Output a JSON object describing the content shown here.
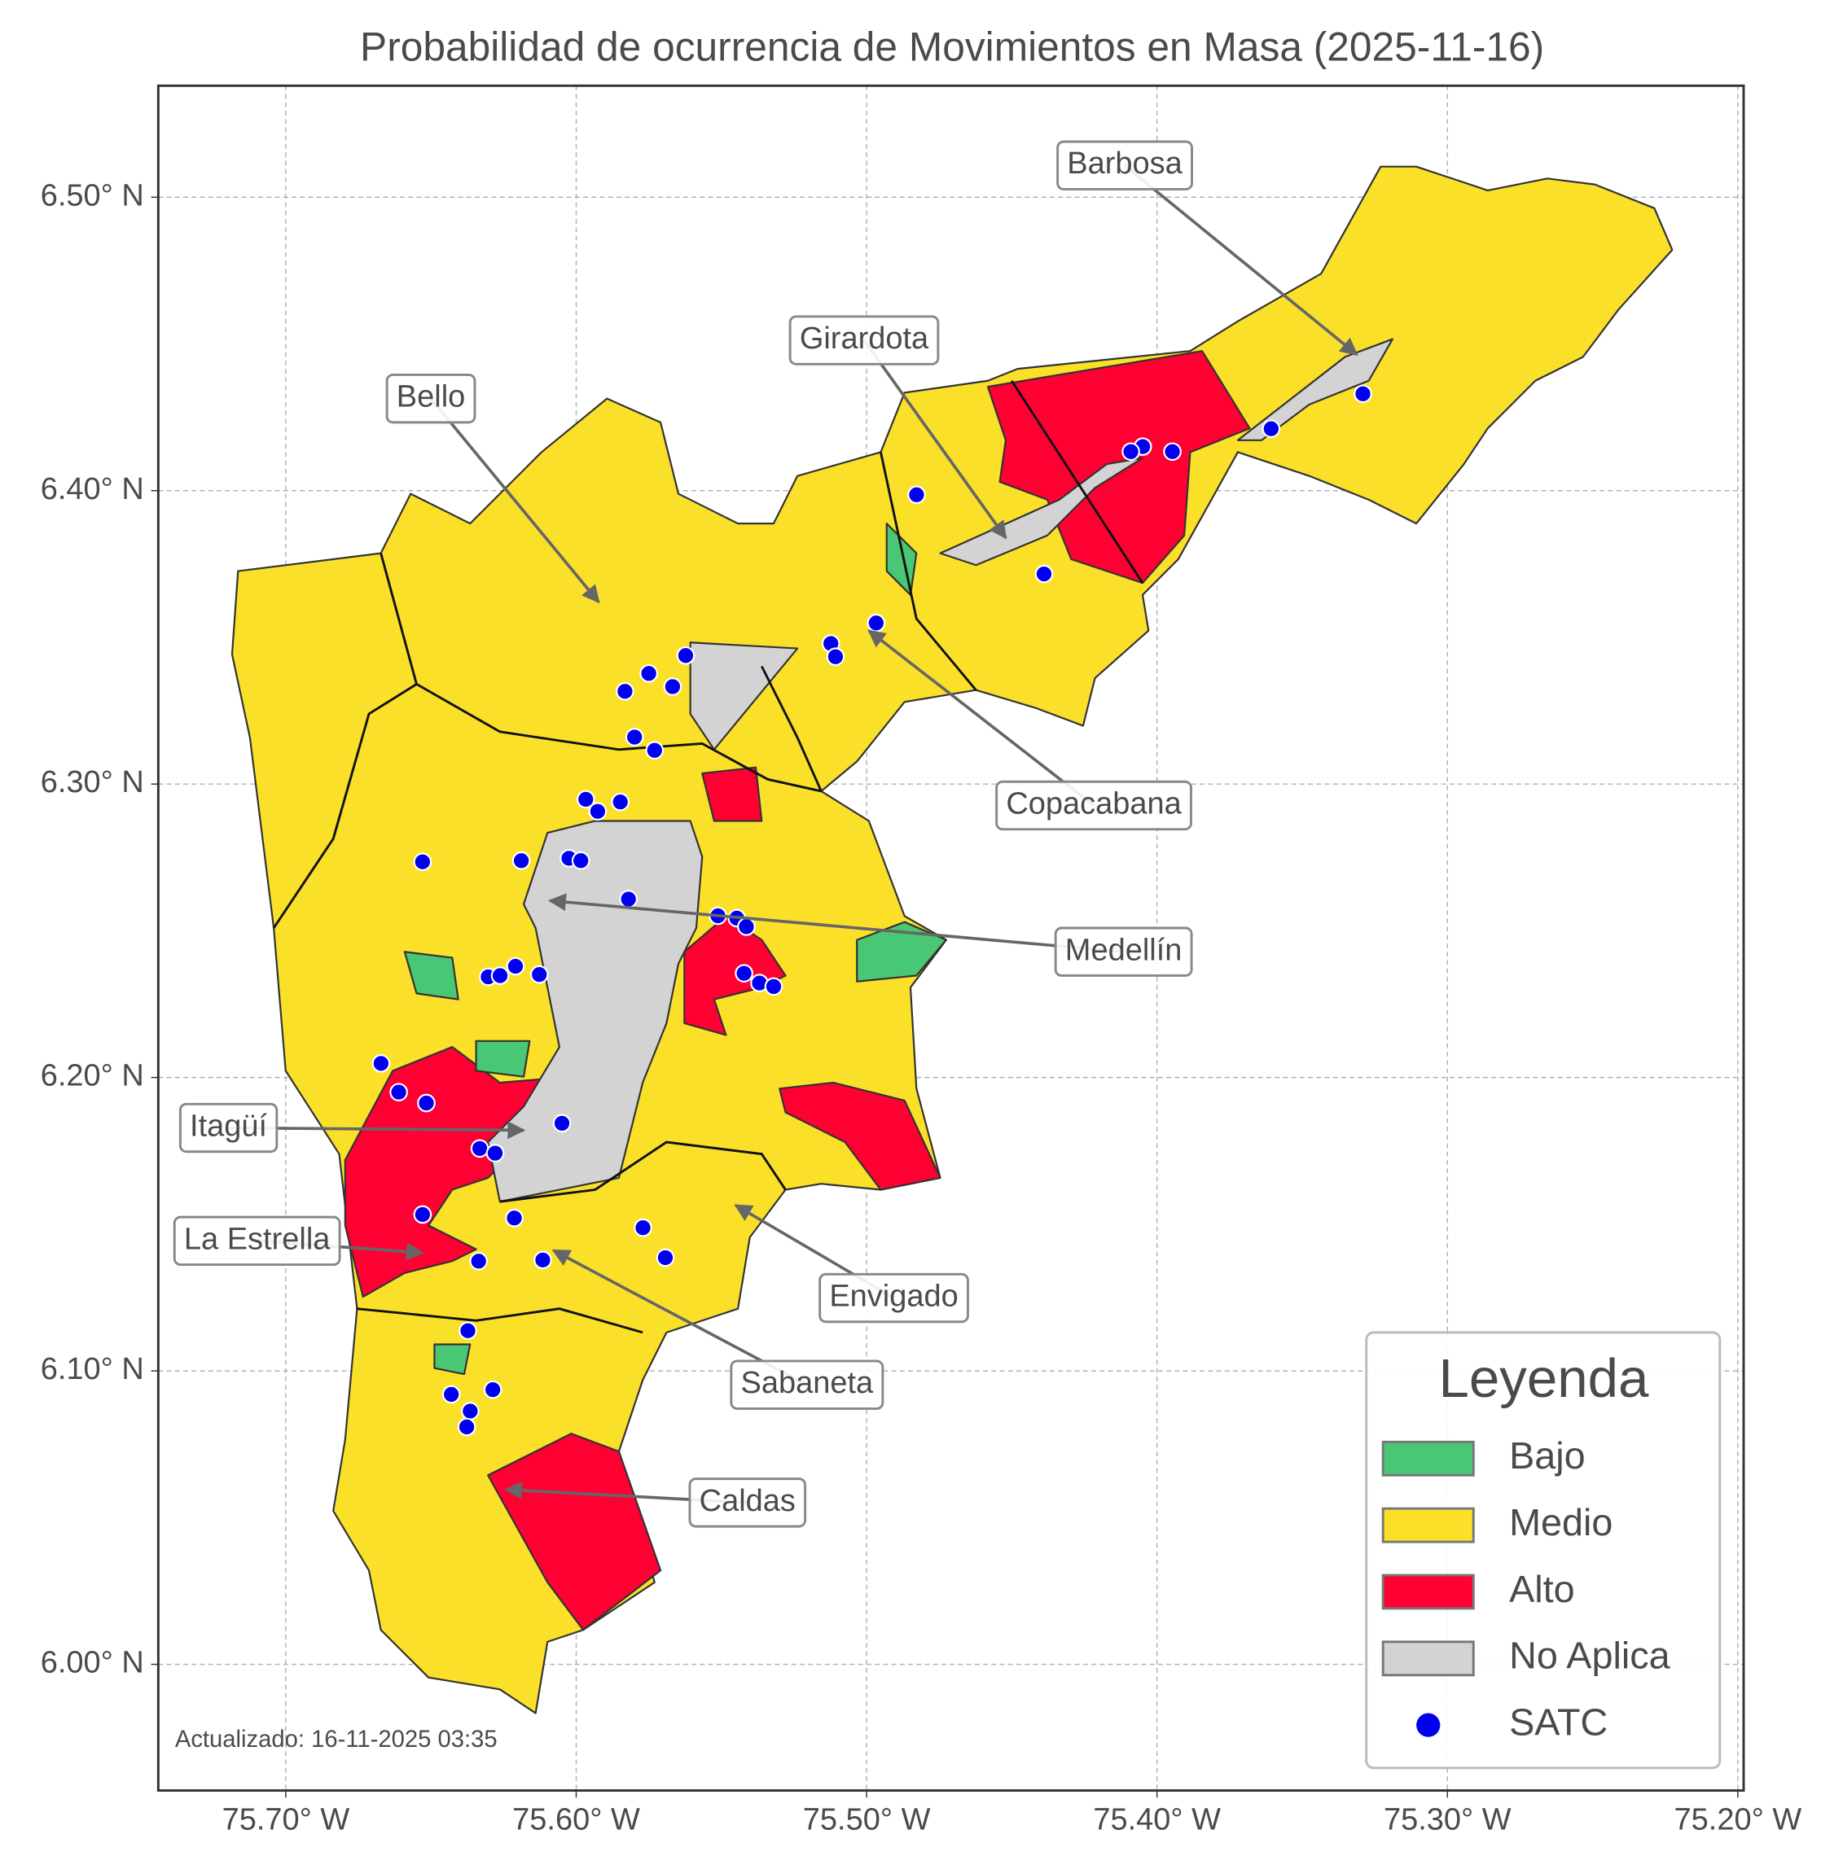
{
  "map": {
    "title": "Probabilidad de ocurrencia de Movimientos en Masa (2025-11-16)",
    "xlim": [
      -75.7439,
      -75.198
    ],
    "ylim": [
      5.957,
      6.538
    ],
    "xticks": [
      {
        "value": -75.7,
        "label": "75.70° W"
      },
      {
        "value": -75.6,
        "label": "75.60° W"
      },
      {
        "value": -75.5,
        "label": "75.50° W"
      },
      {
        "value": -75.4,
        "label": "75.40° W"
      },
      {
        "value": -75.3,
        "label": "75.30° W"
      },
      {
        "value": -75.2,
        "label": "75.20° W"
      }
    ],
    "yticks": [
      {
        "value": 6.0,
        "label": "6.00° N"
      },
      {
        "value": 6.1,
        "label": "6.10° N"
      },
      {
        "value": 6.2,
        "label": "6.20° N"
      },
      {
        "value": 6.3,
        "label": "6.30° N"
      },
      {
        "value": 6.4,
        "label": "6.40° N"
      },
      {
        "value": 6.5,
        "label": "6.50° N"
      }
    ],
    "grid": true,
    "annotations": [
      "Barbosa",
      "Girardota",
      "Bello",
      "Copacabana",
      "Medellín",
      "Itagüí",
      "La Estrella",
      "Envigado",
      "Sabaneta",
      "Caldas"
    ],
    "legend": {
      "title": "Leyenda",
      "position": "lower right",
      "items": [
        {
          "name": "Bajo",
          "color": "#48c774"
        },
        {
          "name": "Medio",
          "color": "#fbe02a"
        },
        {
          "name": "Alto",
          "color": "#ff0033"
        },
        {
          "name": "No Aplica",
          "color": "#d3d3d3"
        },
        {
          "name": "SATC",
          "color": "#0000ee"
        }
      ]
    },
    "stations": {
      "name": "SATC",
      "color": "#0000ee",
      "lon": [
        -75.3291,
        -75.3607,
        -75.3947,
        -75.4049,
        -75.409,
        -75.4828,
        -75.4389,
        -75.4967,
        -75.5123,
        -75.5107,
        -75.5623,
        -75.575,
        -75.5668,
        -75.5832,
        -75.5799,
        -75.573,
        -75.5967,
        -75.5926,
        -75.5848,
        -75.6529,
        -75.6189,
        -75.6025,
        -75.5984,
        -75.582,
        -75.5512,
        -75.5447,
        -75.5414,
        -75.6303,
        -75.6262,
        -75.6209,
        -75.6127,
        -75.5422,
        -75.5369,
        -75.532,
        -75.6672,
        -75.6611,
        -75.6516,
        -75.6049,
        -75.6332,
        -75.6279,
        -75.6529,
        -75.6213,
        -75.577,
        -75.5693,
        -75.6336,
        -75.6115,
        -75.6373,
        -75.643,
        -75.6287,
        -75.6365,
        -75.6377
      ],
      "lat": [
        6.433,
        6.4211,
        6.4133,
        6.415,
        6.4133,
        6.3986,
        6.3716,
        6.3549,
        6.3479,
        6.3434,
        6.3438,
        6.3377,
        6.3332,
        6.3316,
        6.316,
        6.3115,
        6.2948,
        6.2907,
        6.2939,
        6.2735,
        6.2739,
        6.2747,
        6.2739,
        6.2608,
        6.2551,
        6.2543,
        6.2514,
        6.2343,
        6.2347,
        6.2379,
        6.2351,
        6.2355,
        6.2322,
        6.231,
        6.2048,
        6.195,
        6.1913,
        6.1844,
        6.1758,
        6.1742,
        6.1533,
        6.1521,
        6.1488,
        6.1386,
        6.1374,
        6.1378,
        6.1137,
        6.092,
        6.0936,
        6.0863,
        6.0809
      ]
    },
    "footer": "Actualizado: 16-11-2025 03:35"
  }
}
